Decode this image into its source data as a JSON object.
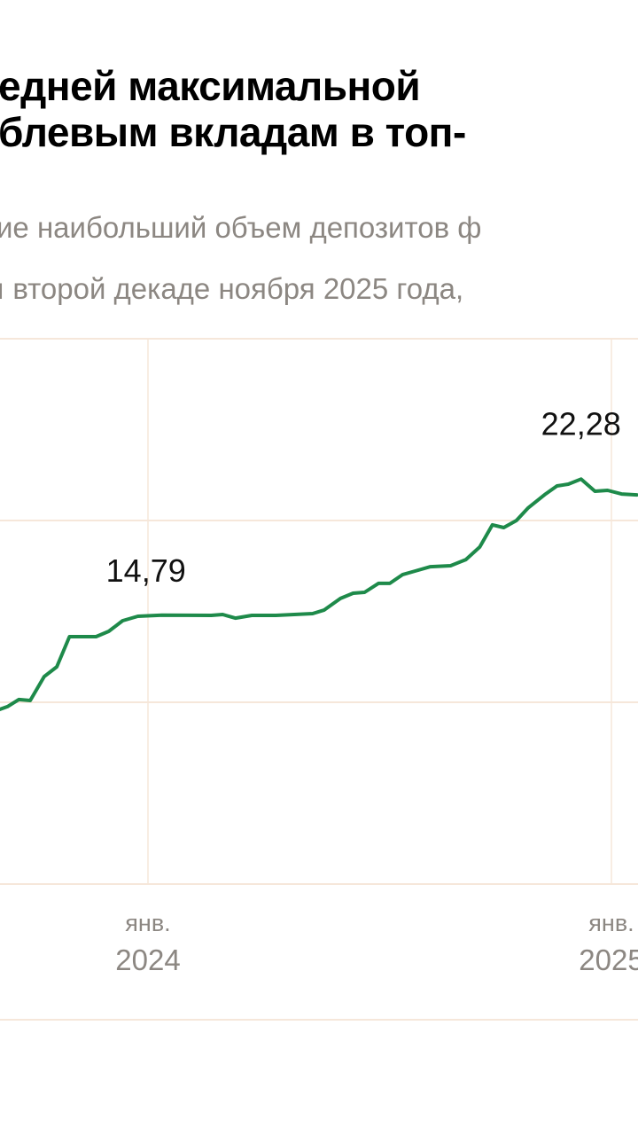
{
  "header": {
    "title_lines": [
      "едней максимальной ",
      "блевым вкладам в топ-"
    ],
    "subtitle_lines": [
      "ие наибольший объем депозитов ф",
      "ı второй декаде ноября 2025 года,"
    ]
  },
  "colors": {
    "line": "#1e8a4a",
    "grid": "#f6e7da",
    "tick_text": "#8c8782",
    "label_text": "#111111"
  },
  "chart_data": {
    "type": "line",
    "grid": true,
    "ylim": [
      0,
      30
    ],
    "yticks": [
      0,
      10,
      20,
      30
    ],
    "xlim": [
      "2023-09-06",
      "2025-01-21"
    ],
    "xticks": [
      {
        "date": "2024-01-01",
        "month": "янв.",
        "year": "2024"
      },
      {
        "date": "2025-01-01",
        "month": "янв.",
        "year": "2025"
      }
    ],
    "series": [
      {
        "points": [
          [
            "2023-09-06",
            9.61
          ],
          [
            "2023-09-12",
            9.76
          ],
          [
            "2023-09-21",
            10.15
          ],
          [
            "2023-09-30",
            10.1
          ],
          [
            "2023-10-11",
            11.41
          ],
          [
            "2023-10-21",
            11.95
          ],
          [
            "2023-10-31",
            13.61
          ],
          [
            "2023-11-21",
            13.61
          ],
          [
            "2023-12-01",
            13.9
          ],
          [
            "2023-12-12",
            14.49
          ],
          [
            "2023-12-24",
            14.73
          ],
          [
            "2024-01-12",
            14.79
          ],
          [
            "2024-02-20",
            14.78
          ],
          [
            "2024-02-29",
            14.83
          ],
          [
            "2024-03-10",
            14.63
          ],
          [
            "2024-03-23",
            14.78
          ],
          [
            "2024-04-11",
            14.78
          ],
          [
            "2024-05-10",
            14.88
          ],
          [
            "2024-05-19",
            15.07
          ],
          [
            "2024-06-01",
            15.71
          ],
          [
            "2024-06-11",
            16.0
          ],
          [
            "2024-06-20",
            16.05
          ],
          [
            "2024-07-01",
            16.54
          ],
          [
            "2024-07-10",
            16.54
          ],
          [
            "2024-07-20",
            17.02
          ],
          [
            "2024-07-30",
            17.22
          ],
          [
            "2024-08-11",
            17.46
          ],
          [
            "2024-08-27",
            17.51
          ],
          [
            "2024-09-08",
            17.85
          ],
          [
            "2024-09-19",
            18.54
          ],
          [
            "2024-09-29",
            19.76
          ],
          [
            "2024-10-08",
            19.61
          ],
          [
            "2024-10-18",
            20.0
          ],
          [
            "2024-10-27",
            20.68
          ],
          [
            "2024-11-10",
            21.46
          ],
          [
            "2024-11-19",
            21.9
          ],
          [
            "2024-11-28",
            22.0
          ],
          [
            "2024-12-08",
            22.28
          ],
          [
            "2024-12-19",
            21.61
          ],
          [
            "2024-12-29",
            21.66
          ],
          [
            "2025-01-09",
            21.46
          ],
          [
            "2025-01-21",
            21.41
          ]
        ]
      }
    ],
    "annotations": [
      {
        "text": "14,79",
        "date": "2024-01-12",
        "value": 14.79
      },
      {
        "text": "22,28",
        "date": "2024-12-08",
        "value": 22.28
      }
    ]
  }
}
